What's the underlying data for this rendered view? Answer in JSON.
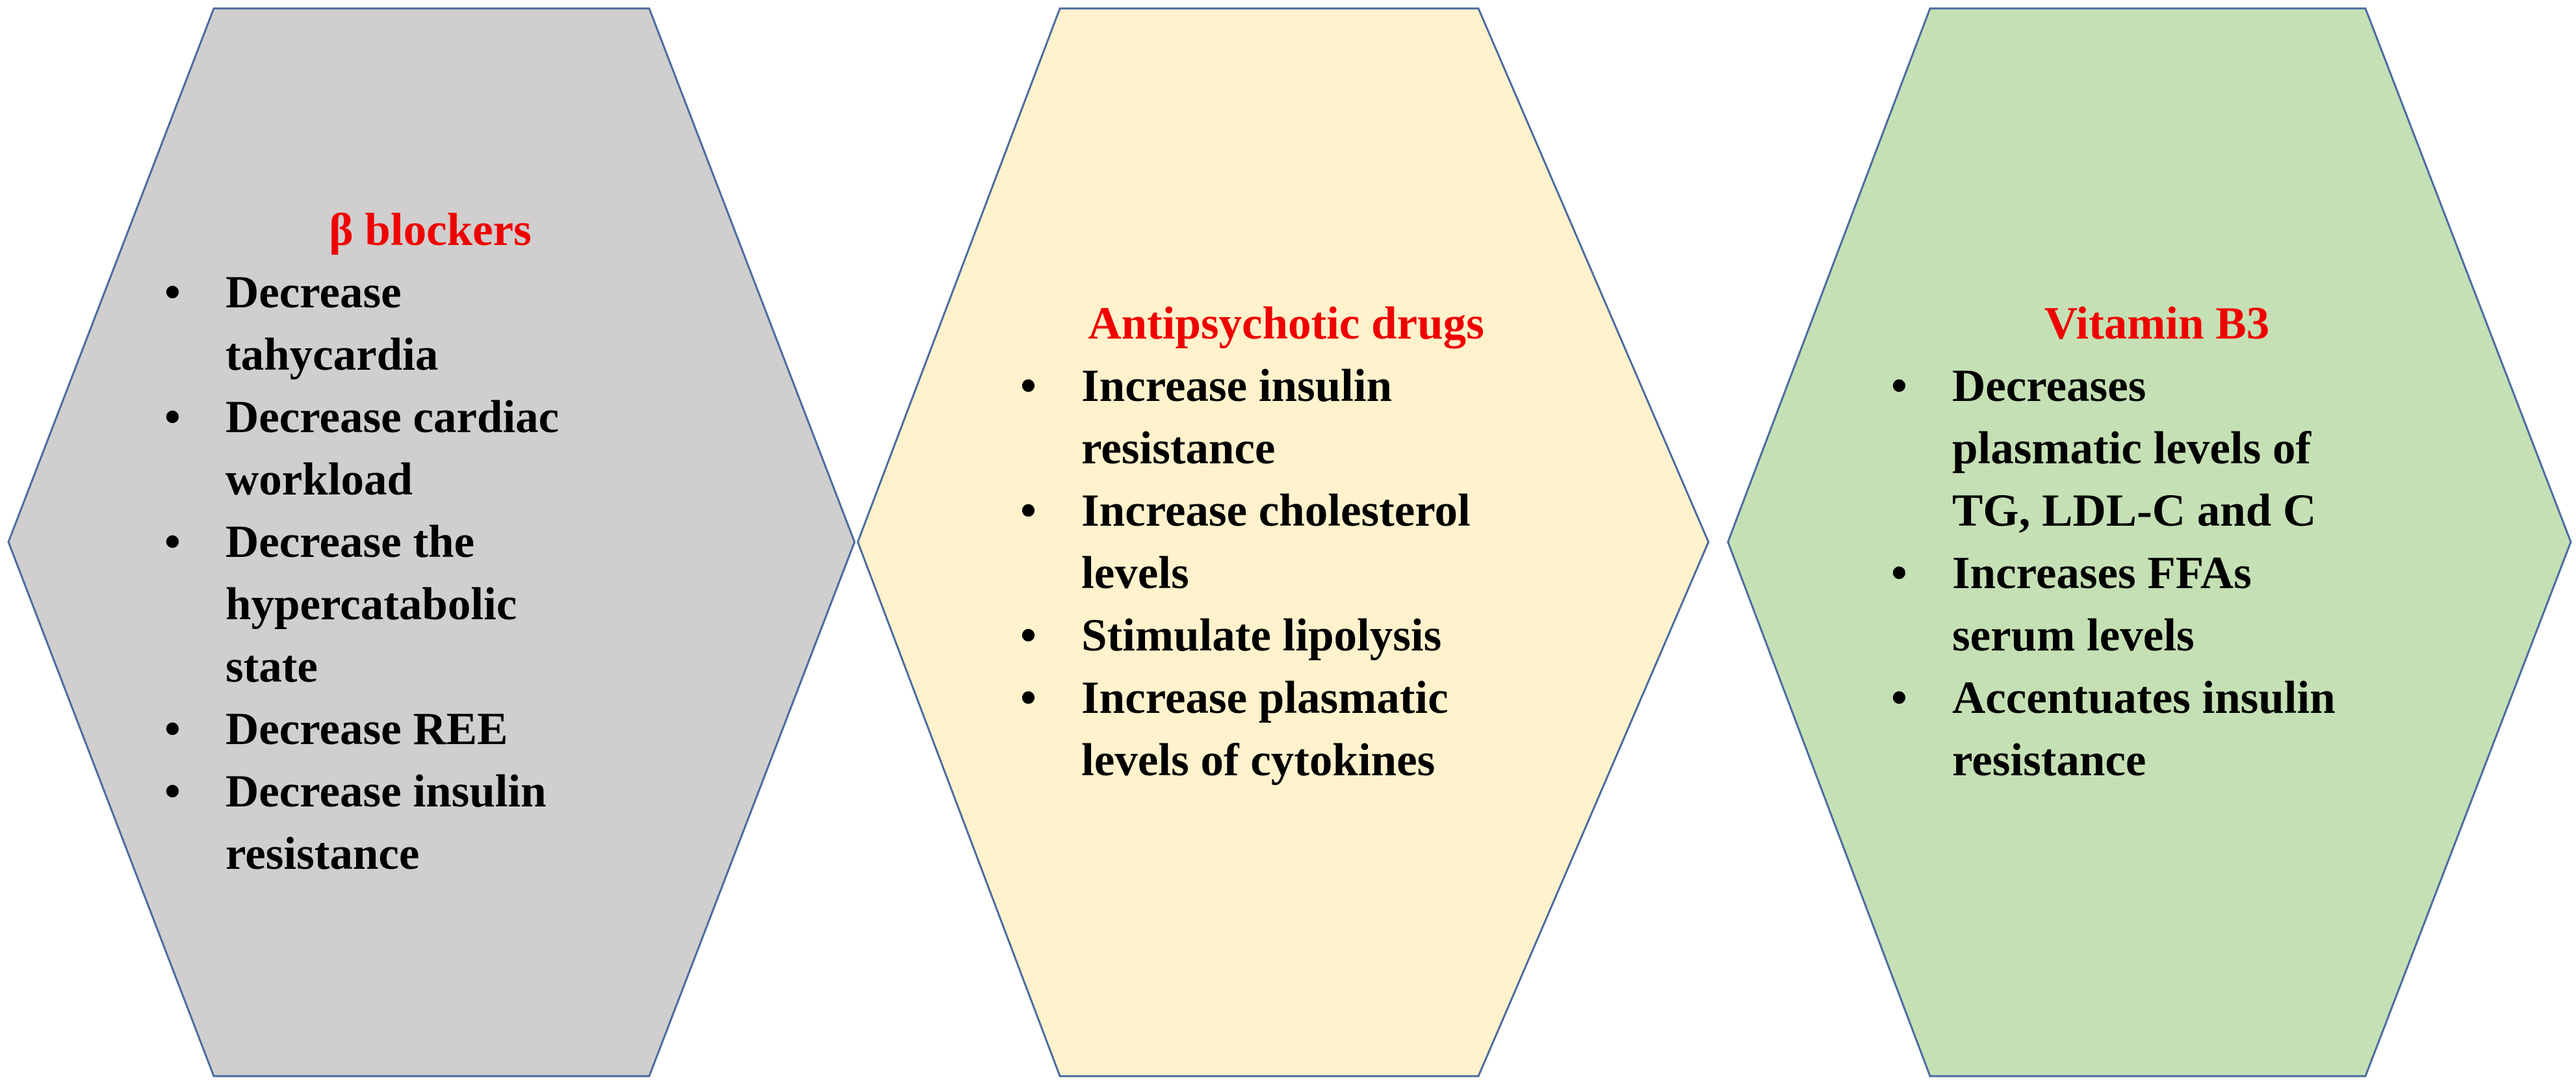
{
  "hexagons": [
    {
      "title": "β blockers",
      "items": [
        {
          "lines": [
            "Decrease",
            "tahycardia"
          ]
        },
        {
          "lines": [
            "Decrease cardiac",
            "workload"
          ]
        },
        {
          "lines": [
            "Decrease the",
            "hypercatabolic",
            "state"
          ]
        },
        {
          "lines": [
            "Decrease REE"
          ]
        },
        {
          "lines": [
            "Decrease insulin",
            "resistance"
          ]
        }
      ]
    },
    {
      "title": "Antipsychotic drugs",
      "items": [
        {
          "lines": [
            "Increase insulin",
            "resistance"
          ]
        },
        {
          "lines": [
            "Increase cholesterol",
            "levels"
          ]
        },
        {
          "lines": [
            "Stimulate lipolysis"
          ]
        },
        {
          "lines": [
            "Increase plasmatic",
            "levels of cytokines"
          ]
        }
      ]
    },
    {
      "title": "Vitamin B3",
      "items": [
        {
          "lines": [
            "Decreases",
            "plasmatic levels of",
            "TG, LDL-C and C"
          ]
        },
        {
          "lines": [
            "Increases FFAs",
            "serum levels"
          ]
        },
        {
          "lines": [
            "Accentuates insulin",
            "resistance"
          ]
        }
      ]
    }
  ]
}
